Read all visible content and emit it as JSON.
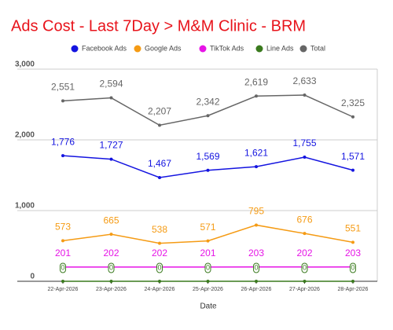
{
  "chart_data": {
    "type": "line",
    "title": "Ads Cost - Last 7Day > M&M Clinic - BRM",
    "x_label": "Date",
    "categories": [
      "22-Apr-2026",
      "23-Apr-2026",
      "24-Apr-2026",
      "25-Apr-2026",
      "26-Apr-2026",
      "27-Apr-2026",
      "28-Apr-2026"
    ],
    "series": [
      {
        "name": "Facebook Ads",
        "color": "#1414e0",
        "values": [
          1776,
          1727,
          1467,
          1569,
          1621,
          1755,
          1571
        ],
        "value_labels": [
          "1,776",
          "1,727",
          "1,467",
          "1,569",
          "1,621",
          "1,755",
          "1,571"
        ]
      },
      {
        "name": "Google Ads",
        "color": "#f59b14",
        "values": [
          573,
          665,
          538,
          571,
          795,
          676,
          551
        ]
      },
      {
        "name": "TikTok Ads",
        "color": "#e614e6",
        "values": [
          201,
          202,
          202,
          201,
          203,
          202,
          203
        ]
      },
      {
        "name": "Line Ads",
        "color": "#3a7a1e",
        "values": [
          0,
          0,
          0,
          0,
          0,
          0,
          0
        ]
      },
      {
        "name": "Total",
        "color": "#666666",
        "values": [
          2551,
          2594,
          2207,
          2342,
          2619,
          2633,
          2325
        ],
        "value_labels": [
          "2,551",
          "2,594",
          "2,207",
          "2,342",
          "2,619",
          "2,633",
          "2,325"
        ]
      }
    ],
    "ylim": [
      0,
      3000
    ],
    "yticks": [
      0,
      {
        "value": 1000,
        "label": "1,000"
      },
      {
        "value": 2000,
        "label": "2,000"
      },
      {
        "value": 3000,
        "label": "3,000"
      }
    ],
    "grid": true,
    "legend": "top"
  }
}
